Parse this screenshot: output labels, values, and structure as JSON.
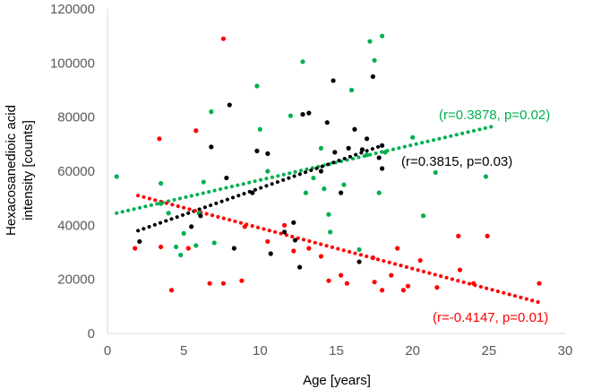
{
  "chart_data": {
    "type": "scatter",
    "title": "",
    "xlabel": "Age [years]",
    "ylabel_line1": "Hexacosanedioic acid",
    "ylabel_line2": "intensity [counts]",
    "xlim": [
      0,
      30
    ],
    "ylim": [
      0,
      120000
    ],
    "x_ticks": [
      "0",
      "5",
      "10",
      "15",
      "20",
      "25",
      "30"
    ],
    "y_ticks": [
      "0",
      "20000",
      "40000",
      "60000",
      "80000",
      "100000",
      "120000"
    ],
    "grid": false,
    "series": [
      {
        "name": "green",
        "color": "#00b050",
        "trend": {
          "x0": 0.6,
          "y0": 44500,
          "x1": 25.2,
          "y1": 76500
        },
        "annotation": "(r=0.3878, p=0.02)",
        "points": [
          [
            0.6,
            58000
          ],
          [
            3.5,
            55500
          ],
          [
            3.5,
            48000
          ],
          [
            4,
            44500
          ],
          [
            4.5,
            32000
          ],
          [
            4.8,
            29000
          ],
          [
            5,
            37000
          ],
          [
            5.8,
            32500
          ],
          [
            6,
            44500
          ],
          [
            6.3,
            56000
          ],
          [
            6.8,
            82000
          ],
          [
            7,
            33500
          ],
          [
            9.8,
            91500
          ],
          [
            10,
            75500
          ],
          [
            10.5,
            60000
          ],
          [
            12,
            80500
          ],
          [
            12.8,
            100500
          ],
          [
            13,
            52000
          ],
          [
            13.5,
            57500
          ],
          [
            14,
            68500
          ],
          [
            14.2,
            53500
          ],
          [
            14.5,
            44000
          ],
          [
            14.6,
            37500
          ],
          [
            15.5,
            55000
          ],
          [
            16,
            90000
          ],
          [
            16.5,
            31000
          ],
          [
            17,
            66000
          ],
          [
            17.2,
            108000
          ],
          [
            17.5,
            101000
          ],
          [
            17.8,
            52000
          ],
          [
            18,
            110000
          ],
          [
            18.2,
            67000
          ],
          [
            20,
            72500
          ],
          [
            20.7,
            43500
          ],
          [
            21.5,
            59500
          ],
          [
            24.8,
            58000
          ]
        ]
      },
      {
        "name": "black",
        "color": "#000000",
        "trend": {
          "x0": 2,
          "y0": 38000,
          "x1": 18,
          "y1": 69500
        },
        "annotation": "(r=0.3815, p=0.03)",
        "points": [
          [
            2.1,
            34000
          ],
          [
            5.5,
            39500
          ],
          [
            6.1,
            43500
          ],
          [
            6.8,
            69000
          ],
          [
            7.8,
            57500
          ],
          [
            8,
            84500
          ],
          [
            8.3,
            31500
          ],
          [
            9.5,
            52000
          ],
          [
            9.8,
            67500
          ],
          [
            10.5,
            66500
          ],
          [
            10.7,
            29500
          ],
          [
            11.6,
            37500
          ],
          [
            12.2,
            41000
          ],
          [
            12.3,
            34500
          ],
          [
            12.6,
            24500
          ],
          [
            12.8,
            81000
          ],
          [
            13.2,
            81500
          ],
          [
            14,
            60000
          ],
          [
            14.4,
            78000
          ],
          [
            14.8,
            93500
          ],
          [
            14.9,
            67000
          ],
          [
            15.3,
            52000
          ],
          [
            15.8,
            68500
          ],
          [
            16.2,
            75500
          ],
          [
            16.5,
            26500
          ],
          [
            16.7,
            68000
          ],
          [
            17,
            72000
          ],
          [
            17.4,
            95000
          ],
          [
            17.8,
            65000
          ],
          [
            18,
            69500
          ],
          [
            18,
            61000
          ]
        ]
      },
      {
        "name": "red",
        "color": "#ff0000",
        "trend": {
          "x0": 2,
          "y0": 51000,
          "x1": 28.3,
          "y1": 11500
        },
        "annotation": "(r=-0.4147, p=0.01)",
        "points": [
          [
            1.8,
            31500
          ],
          [
            3.4,
            72000
          ],
          [
            3.5,
            32000
          ],
          [
            4.2,
            16000
          ],
          [
            5.3,
            31500
          ],
          [
            5.8,
            75000
          ],
          [
            6.7,
            18500
          ],
          [
            7.6,
            109000
          ],
          [
            7.6,
            18500
          ],
          [
            8.8,
            19500
          ],
          [
            9,
            39500
          ],
          [
            10.5,
            34000
          ],
          [
            11.6,
            40000
          ],
          [
            12.2,
            30500
          ],
          [
            13.2,
            31500
          ],
          [
            14,
            28500
          ],
          [
            14.5,
            19500
          ],
          [
            15.3,
            21500
          ],
          [
            15.7,
            18500
          ],
          [
            17.4,
            28000
          ],
          [
            17.5,
            19000
          ],
          [
            18,
            16000
          ],
          [
            18.6,
            21500
          ],
          [
            19,
            31500
          ],
          [
            19.4,
            16000
          ],
          [
            19.7,
            17500
          ],
          [
            20.5,
            27000
          ],
          [
            21.6,
            17000
          ],
          [
            23,
            36000
          ],
          [
            23.1,
            23500
          ],
          [
            24,
            18500
          ],
          [
            24.9,
            36000
          ],
          [
            28.3,
            18500
          ]
        ]
      }
    ]
  }
}
